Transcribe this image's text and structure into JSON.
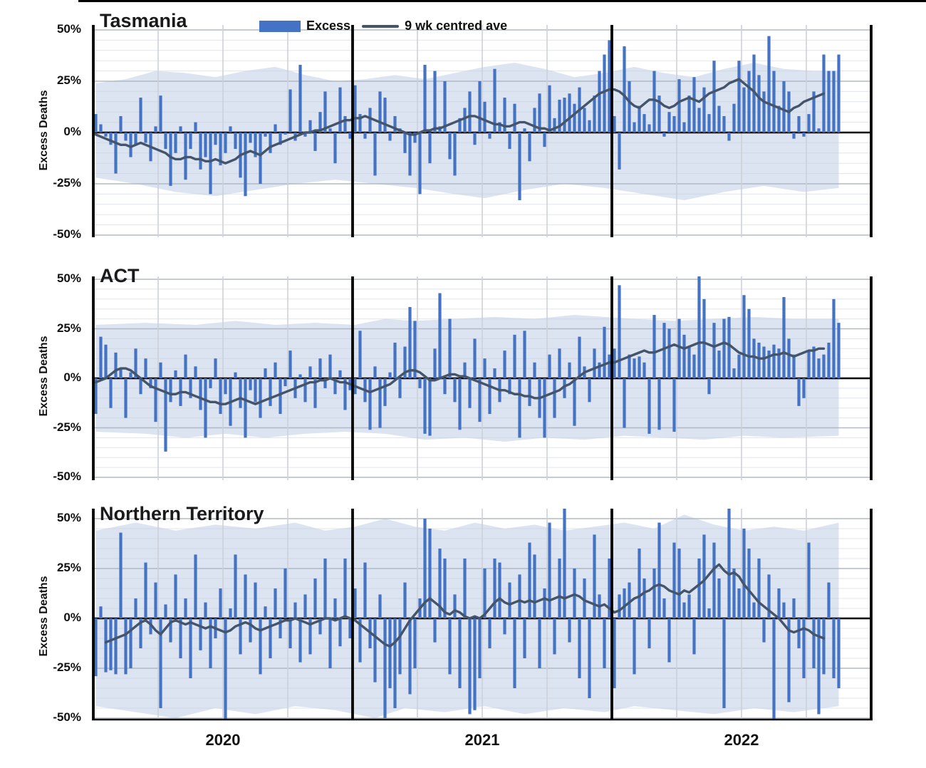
{
  "header": {
    "legend": [
      {
        "swatch": "excess-bar-swatch",
        "label": "Excess"
      },
      {
        "swatch": "avg-line-swatch",
        "label": "9 wk centred ave"
      }
    ]
  },
  "axes": {
    "y_label": "Excess Deaths",
    "y_ticks": [
      50,
      25,
      0,
      -25,
      -50
    ],
    "y_tick_suffix": "%",
    "x_year_labels": [
      "2020",
      "2021",
      "2022"
    ],
    "year_start_indices": [
      0,
      52,
      104
    ],
    "weeks_per_year": 52,
    "ylim": [
      -50,
      50
    ],
    "grid_minor_step_pct": 5,
    "grid_major_step_pct": 25
  },
  "colors": {
    "bar": "#4472c4",
    "avg_line": "#44546a",
    "band": "#dce4f2",
    "zero_line": "#000000",
    "grid_minor": "#c7cfdd",
    "grid_major": "#aab2bf",
    "quarter_line": "#cdd1d8",
    "boundary": "#000000",
    "text": "#111111"
  },
  "chart_data": [
    {
      "type": "bar+line+band",
      "title": "Tasmania",
      "x_unit": "week",
      "x_start": "2020 week 1",
      "series_excess_pct": [
        9,
        4,
        -2,
        -6,
        -20,
        8,
        -4,
        -12,
        -6,
        17,
        -5,
        -14,
        3,
        18,
        -8,
        -26,
        -10,
        3,
        -23,
        -8,
        5,
        -18,
        -12,
        -30,
        -6,
        -16,
        -10,
        3,
        -8,
        -22,
        -31,
        -5,
        -12,
        -25,
        -2,
        -10,
        4,
        -6,
        -1,
        21,
        -4,
        33,
        -2,
        6,
        -9,
        10,
        20,
        2,
        -15,
        22,
        8,
        -3,
        23,
        9,
        -3,
        12,
        -21,
        20,
        17,
        -4,
        8,
        2,
        -10,
        -21,
        -5,
        -30,
        33,
        -15,
        30,
        3,
        25,
        -13,
        -21,
        7,
        12,
        20,
        -6,
        25,
        15,
        -3,
        31,
        5,
        17,
        -8,
        14,
        -33,
        2,
        -14,
        12,
        19,
        -7,
        23,
        7,
        16,
        17,
        19,
        14,
        22,
        12,
        6,
        18,
        30,
        38,
        45,
        8,
        -18,
        42,
        25,
        5,
        13,
        9,
        4,
        30,
        18,
        -2,
        10,
        8,
        26,
        5,
        18,
        27,
        12,
        22,
        9,
        35,
        13,
        8,
        -4,
        14,
        35,
        22,
        30,
        38,
        28,
        20,
        47,
        30,
        13,
        25,
        20,
        -3,
        8,
        -2,
        9,
        20,
        2,
        38,
        30,
        30,
        38
      ],
      "series_avg_pct": [
        -1,
        -2,
        -3,
        -4,
        -5,
        -6,
        -6,
        -7,
        -6,
        -5,
        -6,
        -7,
        -8,
        -9,
        -10,
        -12,
        -13,
        -13,
        -12,
        -12,
        -13,
        -13,
        -14,
        -14,
        -13,
        -14,
        -15,
        -14,
        -13,
        -11,
        -10,
        -9,
        -10,
        -11,
        -9,
        -7,
        -6,
        -5,
        -4,
        -3,
        -2,
        -1,
        0,
        0,
        1,
        1,
        2,
        3,
        4,
        5,
        6,
        6,
        7,
        7,
        8,
        7,
        6,
        5,
        4,
        3,
        2,
        1,
        0,
        -1,
        -1,
        0,
        1,
        1,
        2,
        2,
        3,
        4,
        5,
        6,
        7,
        8,
        8,
        7,
        6,
        5,
        4,
        4,
        3,
        3,
        4,
        5,
        5,
        4,
        3,
        2,
        2,
        1,
        2,
        3,
        5,
        7,
        9,
        11,
        13,
        15,
        17,
        19,
        20,
        21,
        21,
        20,
        18,
        15,
        13,
        12,
        14,
        16,
        16,
        15,
        13,
        12,
        13,
        15,
        16,
        17,
        16,
        15,
        17,
        19,
        20,
        21,
        22,
        24,
        25,
        26,
        24,
        22,
        20,
        17,
        15,
        14,
        13,
        12,
        11,
        10,
        12,
        13,
        15,
        16,
        17,
        18,
        19,
        null,
        null,
        null
      ],
      "band_upper_pts": [
        [
          0,
          24
        ],
        [
          6,
          26
        ],
        [
          12,
          30
        ],
        [
          18,
          29
        ],
        [
          24,
          27
        ],
        [
          30,
          30
        ],
        [
          36,
          32
        ],
        [
          42,
          28
        ],
        [
          48,
          25
        ],
        [
          54,
          26
        ],
        [
          60,
          28
        ],
        [
          66,
          26
        ],
        [
          72,
          29
        ],
        [
          78,
          32
        ],
        [
          84,
          34
        ],
        [
          90,
          31
        ],
        [
          96,
          27
        ],
        [
          102,
          29
        ],
        [
          108,
          32
        ],
        [
          114,
          29
        ],
        [
          120,
          27
        ],
        [
          126,
          31
        ],
        [
          132,
          34
        ],
        [
          138,
          31
        ],
        [
          144,
          30
        ],
        [
          149,
          30
        ]
      ],
      "band_lower_pts": [
        [
          0,
          -22
        ],
        [
          8,
          -25
        ],
        [
          16,
          -29
        ],
        [
          24,
          -31
        ],
        [
          32,
          -28
        ],
        [
          40,
          -25
        ],
        [
          48,
          -23
        ],
        [
          56,
          -25
        ],
        [
          64,
          -27
        ],
        [
          72,
          -30
        ],
        [
          78,
          -32
        ],
        [
          86,
          -28
        ],
        [
          94,
          -25
        ],
        [
          102,
          -27
        ],
        [
          110,
          -30
        ],
        [
          118,
          -33
        ],
        [
          126,
          -29
        ],
        [
          134,
          -26
        ],
        [
          142,
          -29
        ],
        [
          149,
          -27
        ]
      ]
    },
    {
      "type": "bar+line+band",
      "title": "ACT",
      "x_unit": "week",
      "x_start": "2020 week 1",
      "series_excess_pct": [
        -18,
        21,
        17,
        -15,
        13,
        5,
        -20,
        3,
        15,
        -8,
        10,
        -5,
        -22,
        8,
        -37,
        -12,
        4,
        -14,
        12,
        -10,
        6,
        -16,
        -30,
        -5,
        10,
        -18,
        -8,
        -24,
        3,
        -15,
        -30,
        -6,
        -12,
        -20,
        5,
        -14,
        8,
        -18,
        -4,
        14,
        -10,
        2,
        -12,
        6,
        -15,
        10,
        -5,
        12,
        -8,
        4,
        -16,
        -6,
        -8,
        24,
        -12,
        -26,
        6,
        -25,
        -14,
        3,
        18,
        -10,
        16,
        36,
        29,
        -5,
        -28,
        -29,
        15,
        43,
        -8,
        30,
        -12,
        -26,
        8,
        -15,
        20,
        -22,
        10,
        -18,
        5,
        -12,
        14,
        -8,
        22,
        -30,
        24,
        -14,
        8,
        -20,
        -30,
        12,
        -20,
        15,
        -10,
        8,
        -24,
        21,
        6,
        -12,
        15,
        8,
        26,
        12,
        15,
        47,
        -25,
        12,
        10,
        11,
        8,
        -28,
        32,
        -26,
        28,
        25,
        -27,
        30,
        22,
        16,
        12,
        52,
        40,
        -8,
        28,
        14,
        30,
        31,
        5,
        12,
        42,
        35,
        20,
        18,
        16,
        14,
        17,
        15,
        41,
        20,
        12,
        -14,
        -10,
        14,
        16,
        10,
        12,
        18,
        40,
        28
      ],
      "series_avg_pct": [
        -2,
        -1,
        0,
        2,
        4,
        5,
        5,
        4,
        2,
        0,
        -2,
        -4,
        -5,
        -6,
        -7,
        -8,
        -8,
        -7,
        -7,
        -8,
        -9,
        -10,
        -11,
        -12,
        -12,
        -13,
        -13,
        -12,
        -11,
        -10,
        -11,
        -12,
        -13,
        -12,
        -11,
        -10,
        -9,
        -8,
        -7,
        -6,
        -5,
        -4,
        -3,
        -2,
        -2,
        -1,
        -1,
        0,
        -1,
        -2,
        -2,
        -3,
        -4,
        -5,
        -6,
        -7,
        -6,
        -5,
        -4,
        -3,
        -1,
        1,
        3,
        4,
        4,
        3,
        1,
        -1,
        -1,
        0,
        1,
        2,
        2,
        1,
        1,
        0,
        -1,
        -2,
        -3,
        -4,
        -5,
        -6,
        -6,
        -7,
        -8,
        -8,
        -9,
        -9,
        -10,
        -10,
        -9,
        -8,
        -7,
        -6,
        -4,
        -3,
        -1,
        1,
        3,
        4,
        5,
        6,
        7,
        8,
        8,
        9,
        10,
        11,
        12,
        13,
        14,
        13,
        13,
        14,
        15,
        16,
        17,
        16,
        15,
        16,
        17,
        18,
        18,
        17,
        16,
        17,
        18,
        17,
        15,
        13,
        12,
        11,
        11,
        10,
        10,
        11,
        12,
        12,
        13,
        12,
        11,
        12,
        13,
        14,
        14,
        15,
        15,
        null,
        null,
        null
      ],
      "band_upper_pts": [
        [
          0,
          27
        ],
        [
          10,
          28
        ],
        [
          20,
          27
        ],
        [
          28,
          29
        ],
        [
          36,
          27
        ],
        [
          44,
          28
        ],
        [
          52,
          27
        ],
        [
          58,
          30
        ],
        [
          64,
          29
        ],
        [
          72,
          30
        ],
        [
          80,
          31
        ],
        [
          88,
          30
        ],
        [
          96,
          32
        ],
        [
          102,
          31
        ],
        [
          108,
          30
        ],
        [
          116,
          29
        ],
        [
          124,
          30
        ],
        [
          132,
          31
        ],
        [
          140,
          30
        ],
        [
          149,
          30
        ]
      ],
      "band_lower_pts": [
        [
          0,
          -27
        ],
        [
          10,
          -28
        ],
        [
          18,
          -30
        ],
        [
          26,
          -28
        ],
        [
          34,
          -30
        ],
        [
          42,
          -28
        ],
        [
          50,
          -27
        ],
        [
          58,
          -28
        ],
        [
          66,
          -31
        ],
        [
          74,
          -30
        ],
        [
          82,
          -32
        ],
        [
          90,
          -30
        ],
        [
          98,
          -31
        ],
        [
          106,
          -29
        ],
        [
          114,
          -30
        ],
        [
          122,
          -31
        ],
        [
          130,
          -29
        ],
        [
          138,
          -30
        ],
        [
          149,
          -29
        ]
      ]
    },
    {
      "type": "bar+line+band",
      "title": "Northern Territory",
      "x_unit": "week",
      "x_start": "2020 week 1",
      "series_excess_pct": [
        -29,
        6,
        -27,
        -26,
        -28,
        43,
        -28,
        -25,
        10,
        -15,
        28,
        -8,
        18,
        -45,
        7,
        -12,
        22,
        -20,
        10,
        -30,
        32,
        -16,
        8,
        -25,
        -10,
        15,
        -53,
        5,
        32,
        -18,
        22,
        -12,
        18,
        -28,
        6,
        -20,
        15,
        -10,
        25,
        -15,
        8,
        -22,
        12,
        -18,
        20,
        -8,
        30,
        -25,
        10,
        -14,
        30,
        -10,
        15,
        -22,
        28,
        -15,
        -32,
        12,
        -50,
        -35,
        -45,
        -28,
        18,
        -38,
        -25,
        10,
        50,
        45,
        -12,
        35,
        30,
        -28,
        12,
        -35,
        30,
        -48,
        -46,
        -30,
        25,
        -15,
        30,
        28,
        -8,
        18,
        -35,
        22,
        -20,
        38,
        32,
        -25,
        15,
        48,
        -18,
        30,
        55,
        -12,
        25,
        -30,
        20,
        -40,
        42,
        12,
        -25,
        30,
        -35,
        12,
        15,
        18,
        -28,
        35,
        20,
        -15,
        25,
        48,
        10,
        -22,
        38,
        35,
        8,
        12,
        -18,
        30,
        42,
        5,
        38,
        20,
        -45,
        60,
        25,
        15,
        45,
        35,
        8,
        30,
        -12,
        22,
        -52,
        15,
        8,
        -42,
        10,
        -15,
        -30,
        38,
        -25,
        -48,
        -28,
        18,
        -30,
        -35
      ],
      "series_avg_pct": [
        null,
        null,
        -12,
        -11,
        -10,
        -9,
        -8,
        -6,
        -4,
        -2,
        -1,
        -3,
        -6,
        -8,
        -5,
        -2,
        -1,
        -2,
        -3,
        -2,
        -3,
        -4,
        -5,
        -4,
        -5,
        -6,
        -7,
        -6,
        -4,
        -3,
        -2,
        -3,
        -5,
        -6,
        -5,
        -4,
        -3,
        -2,
        -1,
        -1,
        0,
        -1,
        -2,
        -3,
        -2,
        -1,
        0,
        0,
        -1,
        0,
        1,
        0,
        -1,
        -3,
        -5,
        -7,
        -9,
        -11,
        -13,
        -14,
        -12,
        -9,
        -5,
        -1,
        2,
        5,
        8,
        10,
        8,
        6,
        3,
        2,
        4,
        3,
        1,
        0,
        1,
        0,
        2,
        5,
        8,
        10,
        8,
        7,
        8,
        9,
        8,
        9,
        8,
        9,
        10,
        9,
        10,
        11,
        10,
        11,
        12,
        11,
        9,
        8,
        7,
        6,
        7,
        5,
        3,
        4,
        6,
        8,
        10,
        11,
        13,
        14,
        16,
        17,
        16,
        14,
        13,
        12,
        14,
        13,
        15,
        17,
        19,
        22,
        25,
        27,
        24,
        22,
        23,
        21,
        17,
        14,
        11,
        8,
        6,
        4,
        2,
        0,
        -3,
        -6,
        -7,
        -6,
        -5,
        -6,
        -8,
        -9,
        -10,
        null,
        null,
        null
      ],
      "band_upper_pts": [
        [
          0,
          44
        ],
        [
          8,
          48
        ],
        [
          16,
          44
        ],
        [
          24,
          47
        ],
        [
          32,
          45
        ],
        [
          40,
          48
        ],
        [
          46,
          44
        ],
        [
          52,
          46
        ],
        [
          58,
          50
        ],
        [
          64,
          46
        ],
        [
          70,
          44
        ],
        [
          76,
          48
        ],
        [
          82,
          45
        ],
        [
          88,
          47
        ],
        [
          94,
          44
        ],
        [
          100,
          46
        ],
        [
          106,
          48
        ],
        [
          112,
          45
        ],
        [
          118,
          52
        ],
        [
          124,
          47
        ],
        [
          130,
          44
        ],
        [
          136,
          46
        ],
        [
          142,
          44
        ],
        [
          149,
          48
        ]
      ],
      "band_lower_pts": [
        [
          0,
          -44
        ],
        [
          8,
          -47
        ],
        [
          16,
          -50
        ],
        [
          24,
          -45
        ],
        [
          32,
          -48
        ],
        [
          40,
          -44
        ],
        [
          48,
          -46
        ],
        [
          56,
          -50
        ],
        [
          62,
          -45
        ],
        [
          70,
          -47
        ],
        [
          78,
          -44
        ],
        [
          86,
          -48
        ],
        [
          94,
          -45
        ],
        [
          102,
          -47
        ],
        [
          108,
          -44
        ],
        [
          116,
          -46
        ],
        [
          124,
          -48
        ],
        [
          132,
          -45
        ],
        [
          140,
          -47
        ],
        [
          149,
          -44
        ]
      ]
    }
  ]
}
